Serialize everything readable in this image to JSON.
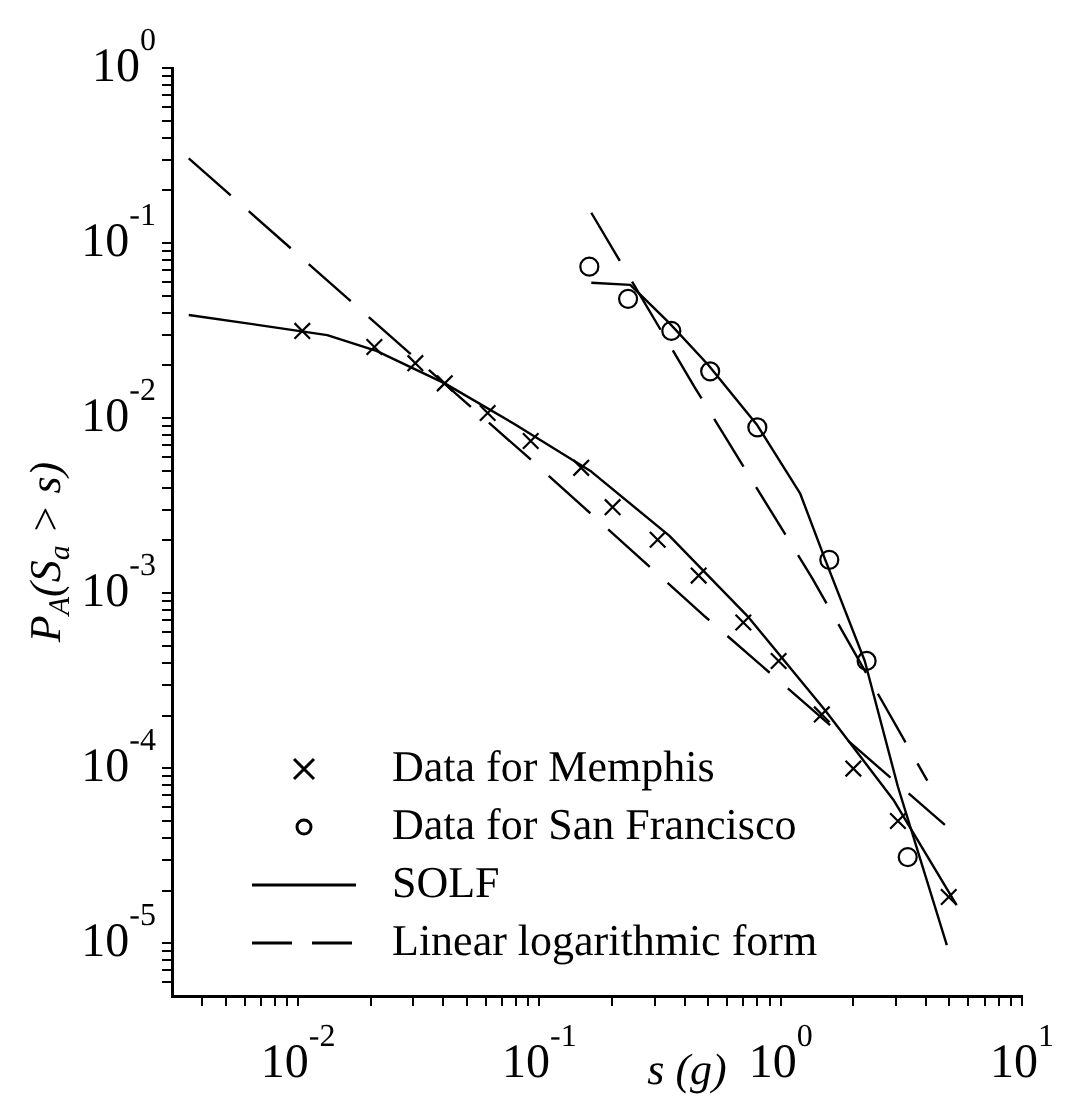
{
  "chart_data": {
    "type": "line",
    "xlabel": "s (g)",
    "ylabel": "P$_{A}$(S$_{a}$ > s)",
    "log": "xy",
    "legend": "bottom left",
    "xlim": [
      0.003,
      10
    ],
    "ylim": [
      5e-06,
      1
    ],
    "xticks": [
      {
        "value": 0.004,
        "label": null
      },
      {
        "value": 0.005,
        "label": null
      },
      {
        "value": 0.006,
        "label": null
      },
      {
        "value": 0.007,
        "label": null
      },
      {
        "value": 0.008,
        "label": null
      },
      {
        "value": 0.009,
        "label": null
      },
      {
        "value": 0.01,
        "label": "10$^{-2}$"
      },
      {
        "value": 0.02,
        "label": null
      },
      {
        "value": 0.03,
        "label": null
      },
      {
        "value": 0.04,
        "label": null
      },
      {
        "value": 0.05,
        "label": null
      },
      {
        "value": 0.06,
        "label": null
      },
      {
        "value": 0.07,
        "label": null
      },
      {
        "value": 0.08,
        "label": null
      },
      {
        "value": 0.09,
        "label": null
      },
      {
        "value": 0.1,
        "label": "10$^{-1}$"
      },
      {
        "value": 0.2,
        "label": null
      },
      {
        "value": 0.3,
        "label": null
      },
      {
        "value": 0.4,
        "label": null
      },
      {
        "value": 0.5,
        "label": null
      },
      {
        "value": 0.6,
        "label": null
      },
      {
        "value": 0.7,
        "label": null
      },
      {
        "value": 0.8,
        "label": null
      },
      {
        "value": 0.9,
        "label": null
      },
      {
        "value": 1,
        "label": "10$^{0}$"
      },
      {
        "value": 2,
        "label": null
      },
      {
        "value": 3,
        "label": null
      },
      {
        "value": 4,
        "label": null
      },
      {
        "value": 5,
        "label": null
      },
      {
        "value": 6,
        "label": null
      },
      {
        "value": 7,
        "label": null
      },
      {
        "value": 8,
        "label": null
      },
      {
        "value": 9,
        "label": null
      },
      {
        "value": 10,
        "label": "10$^{1}$"
      }
    ],
    "yticks": [
      {
        "value": 6e-06,
        "label": null
      },
      {
        "value": 7e-06,
        "label": null
      },
      {
        "value": 8e-06,
        "label": null
      },
      {
        "value": 9e-06,
        "label": null
      },
      {
        "value": 1e-05,
        "label": "10$^{-5}$"
      },
      {
        "value": 2e-05,
        "label": null
      },
      {
        "value": 3e-05,
        "label": null
      },
      {
        "value": 4e-05,
        "label": null
      },
      {
        "value": 5e-05,
        "label": null
      },
      {
        "value": 6e-05,
        "label": null
      },
      {
        "value": 7e-05,
        "label": null
      },
      {
        "value": 8e-05,
        "label": null
      },
      {
        "value": 9e-05,
        "label": null
      },
      {
        "value": 0.0001,
        "label": "10$^{-4}$"
      },
      {
        "value": 0.0002,
        "label": null
      },
      {
        "value": 0.0003,
        "label": null
      },
      {
        "value": 0.0004,
        "label": null
      },
      {
        "value": 0.0005,
        "label": null
      },
      {
        "value": 0.0006,
        "label": null
      },
      {
        "value": 0.0007,
        "label": null
      },
      {
        "value": 0.0008,
        "label": null
      },
      {
        "value": 0.0009,
        "label": null
      },
      {
        "value": 0.001,
        "label": "10$^{-3}$"
      },
      {
        "value": 0.002,
        "label": null
      },
      {
        "value": 0.003,
        "label": null
      },
      {
        "value": 0.004,
        "label": null
      },
      {
        "value": 0.005,
        "label": null
      },
      {
        "value": 0.006,
        "label": null
      },
      {
        "value": 0.007,
        "label": null
      },
      {
        "value": 0.008,
        "label": null
      },
      {
        "value": 0.009,
        "label": null
      },
      {
        "value": 0.01,
        "label": "10$^{-2}$"
      },
      {
        "value": 0.02,
        "label": null
      },
      {
        "value": 0.03,
        "label": null
      },
      {
        "value": 0.04,
        "label": null
      },
      {
        "value": 0.05,
        "label": null
      },
      {
        "value": 0.06,
        "label": null
      },
      {
        "value": 0.07,
        "label": null
      },
      {
        "value": 0.08,
        "label": null
      },
      {
        "value": 0.09,
        "label": null
      },
      {
        "value": 0.1,
        "label": "10$^{-1}$"
      },
      {
        "value": 0.2,
        "label": null
      },
      {
        "value": 0.3,
        "label": null
      },
      {
        "value": 0.4,
        "label": null
      },
      {
        "value": 0.5,
        "label": null
      },
      {
        "value": 0.6,
        "label": null
      },
      {
        "value": 0.7,
        "label": null
      },
      {
        "value": 0.8,
        "label": null
      },
      {
        "value": 0.9,
        "label": null
      },
      {
        "value": 1,
        "label": "10$^{0}$"
      }
    ],
    "series": [
      {
        "name": "Data for Memphis",
        "type": "scatter",
        "marker": "cross",
        "color": "#000000",
        "x": [
          0.0104,
          0.0207,
          0.0306,
          0.0405,
          0.061,
          0.092,
          0.149,
          0.201,
          0.309,
          0.457,
          0.7,
          0.98,
          1.48,
          2.0,
          3.06,
          4.97
        ],
        "values": [
          0.0315,
          0.0255,
          0.0206,
          0.0158,
          0.0107,
          0.0074,
          0.0052,
          0.0031,
          0.00202,
          0.00126,
          0.00068,
          0.00041,
          0.000203,
          9.95e-05,
          5e-05,
          1.84e-05
        ]
      },
      {
        "name": "Data for San Francisco",
        "type": "scatter",
        "marker": "circle",
        "color": "#000000",
        "x": [
          0.161,
          0.233,
          0.352,
          0.51,
          0.8,
          1.59,
          2.27,
          3.36
        ],
        "values": [
          0.0733,
          0.048,
          0.0315,
          0.0185,
          0.00885,
          0.00155,
          0.00041,
          3.11e-05
        ]
      },
      {
        "name": "SOLF",
        "marker": "none",
        "line_style": "solid",
        "color": "#000000",
        "x": [
          0.00352,
          0.00689,
          0.0132,
          0.0211,
          0.0405,
          0.0778,
          0.164,
          0.345,
          0.728,
          1.53,
          2.95,
          5.36
        ],
        "values": [
          0.0388,
          0.034,
          0.0298,
          0.0242,
          0.0158,
          0.00934,
          0.00495,
          0.00213,
          0.00074,
          0.000214,
          6.52e-05,
          1.65e-05
        ]
      },
      {
        "marker": "none",
        "line_style": "solid",
        "color": "#000000",
        "x": [
          0.164,
          0.238,
          0.345,
          0.501,
          0.8,
          1.205,
          1.53,
          2.23,
          3.06,
          4.88
        ],
        "values": [
          0.0593,
          0.0577,
          0.035,
          0.0201,
          0.0091,
          0.0037,
          0.00155,
          0.00041,
          7.84e-05,
          9.75e-06
        ]
      },
      {
        "name": "Linear logarithmic form",
        "marker": "none",
        "line_style": "dashed",
        "color": "#000000",
        "x": [
          0.00352,
          0.02,
          0.09,
          0.483,
          4.79
        ],
        "values": [
          0.305,
          0.0369,
          0.00596,
          0.00074,
          4.75e-05
        ]
      },
      {
        "marker": "none",
        "line_style": "dashed",
        "color": "#000000",
        "x": [
          0.164,
          0.44,
          1.35,
          4.05
        ],
        "values": [
          0.149,
          0.015,
          0.00122,
          8.49e-05
        ]
      }
    ]
  }
}
